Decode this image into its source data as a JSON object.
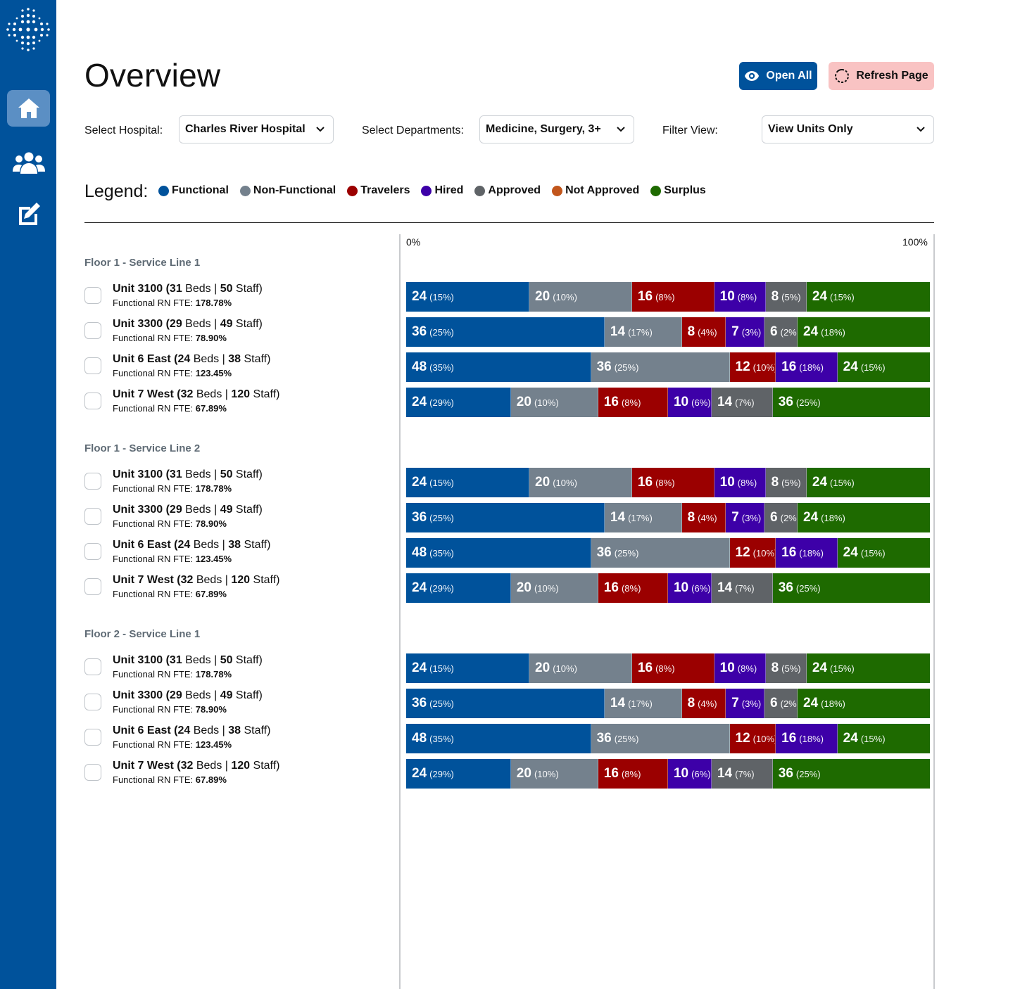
{
  "page": {
    "title": "Overview"
  },
  "actions": {
    "open_all": "Open All",
    "refresh": "Refresh Page"
  },
  "filters": {
    "hospital_label": "Select Hospital:",
    "hospital_value": "Charles River Hospital",
    "departments_label": "Select Departments:",
    "departments_value": "Medicine, Surgery, 3+",
    "view_label": "Filter View:",
    "view_value": "View Units Only"
  },
  "legend": {
    "title": "Legend:",
    "items": [
      {
        "key": "functional",
        "label": "Functional",
        "color": "#00529b"
      },
      {
        "key": "non-functional",
        "label": "Non-Functional",
        "color": "#74818d"
      },
      {
        "key": "travelers",
        "label": "Travelers",
        "color": "#9b0000"
      },
      {
        "key": "hired",
        "label": "Hired",
        "color": "#3d00a8"
      },
      {
        "key": "approved",
        "label": "Approved",
        "color": "#5f6367"
      },
      {
        "key": "not-approved",
        "label": "Not Approved",
        "color": "#c2561c"
      },
      {
        "key": "surplus",
        "label": "Surplus",
        "color": "#1e6a00"
      }
    ]
  },
  "axis": {
    "min_label": "0%",
    "max_label": "100%"
  },
  "groups": [
    {
      "title": "Floor 1 - Service Line 1",
      "units": [
        {
          "name": "Unit 3100",
          "beds": "31",
          "staff": "50",
          "fte_label": "Functional RN FTE:",
          "fte": "178.78%",
          "segments": [
            {
              "type": "functional",
              "value": "24",
              "pct": "15%"
            },
            {
              "type": "non-functional",
              "value": "20",
              "pct": "10%"
            },
            {
              "type": "travelers",
              "value": "16",
              "pct": "8%"
            },
            {
              "type": "hired",
              "value": "10",
              "pct": "8%"
            },
            {
              "type": "approved",
              "value": "8",
              "pct": "5%"
            },
            {
              "type": "surplus",
              "value": "24",
              "pct": "15%"
            }
          ]
        },
        {
          "name": "Unit 3300",
          "beds": "29",
          "staff": "49",
          "fte_label": "Functional RN FTE:",
          "fte": "78.90%",
          "segments": [
            {
              "type": "functional",
              "value": "36",
              "pct": "25%"
            },
            {
              "type": "non-functional",
              "value": "14",
              "pct": "17%"
            },
            {
              "type": "travelers",
              "value": "8",
              "pct": "4%"
            },
            {
              "type": "hired",
              "value": "7",
              "pct": "3%"
            },
            {
              "type": "approved",
              "value": "6",
              "pct": "2%"
            },
            {
              "type": "surplus",
              "value": "24",
              "pct": "18%"
            }
          ]
        },
        {
          "name": "Unit 6 East",
          "beds": "24",
          "staff": "38",
          "fte_label": "Functional RN FTE:",
          "fte": "123.45%",
          "segments": [
            {
              "type": "functional",
              "value": "48",
              "pct": "35%"
            },
            {
              "type": "non-functional",
              "value": "36",
              "pct": "25%"
            },
            {
              "type": "travelers",
              "value": "12",
              "pct": "10%"
            },
            {
              "type": "hired",
              "value": "16",
              "pct": "18%"
            },
            {
              "type": "surplus",
              "value": "24",
              "pct": "15%"
            }
          ]
        },
        {
          "name": "Unit 7 West",
          "beds": "32",
          "staff": "120",
          "fte_label": "Functional RN FTE:",
          "fte": "67.89%",
          "segments": [
            {
              "type": "functional",
              "value": "24",
              "pct": "29%"
            },
            {
              "type": "non-functional",
              "value": "20",
              "pct": "10%"
            },
            {
              "type": "travelers",
              "value": "16",
              "pct": "8%"
            },
            {
              "type": "hired",
              "value": "10",
              "pct": "6%"
            },
            {
              "type": "approved",
              "value": "14",
              "pct": "7%"
            },
            {
              "type": "surplus",
              "value": "36",
              "pct": "25%"
            }
          ]
        }
      ]
    },
    {
      "title": "Floor 1 - Service Line 2",
      "units": [
        {
          "name": "Unit 3100",
          "beds": "31",
          "staff": "50",
          "fte_label": "Functional RN FTE:",
          "fte": "178.78%",
          "segments": [
            {
              "type": "functional",
              "value": "24",
              "pct": "15%"
            },
            {
              "type": "non-functional",
              "value": "20",
              "pct": "10%"
            },
            {
              "type": "travelers",
              "value": "16",
              "pct": "8%"
            },
            {
              "type": "hired",
              "value": "10",
              "pct": "8%"
            },
            {
              "type": "approved",
              "value": "8",
              "pct": "5%"
            },
            {
              "type": "surplus",
              "value": "24",
              "pct": "15%"
            }
          ]
        },
        {
          "name": "Unit 3300",
          "beds": "29",
          "staff": "49",
          "fte_label": "Functional RN FTE:",
          "fte": "78.90%",
          "segments": [
            {
              "type": "functional",
              "value": "36",
              "pct": "25%"
            },
            {
              "type": "non-functional",
              "value": "14",
              "pct": "17%"
            },
            {
              "type": "travelers",
              "value": "8",
              "pct": "4%"
            },
            {
              "type": "hired",
              "value": "7",
              "pct": "3%"
            },
            {
              "type": "approved",
              "value": "6",
              "pct": "2%"
            },
            {
              "type": "surplus",
              "value": "24",
              "pct": "18%"
            }
          ]
        },
        {
          "name": "Unit 6 East",
          "beds": "24",
          "staff": "38",
          "fte_label": "Functional RN FTE:",
          "fte": "123.45%",
          "segments": [
            {
              "type": "functional",
              "value": "48",
              "pct": "35%"
            },
            {
              "type": "non-functional",
              "value": "36",
              "pct": "25%"
            },
            {
              "type": "travelers",
              "value": "12",
              "pct": "10%"
            },
            {
              "type": "hired",
              "value": "16",
              "pct": "18%"
            },
            {
              "type": "surplus",
              "value": "24",
              "pct": "15%"
            }
          ]
        },
        {
          "name": "Unit 7 West",
          "beds": "32",
          "staff": "120",
          "fte_label": "Functional RN FTE:",
          "fte": "67.89%",
          "segments": [
            {
              "type": "functional",
              "value": "24",
              "pct": "29%"
            },
            {
              "type": "non-functional",
              "value": "20",
              "pct": "10%"
            },
            {
              "type": "travelers",
              "value": "16",
              "pct": "8%"
            },
            {
              "type": "hired",
              "value": "10",
              "pct": "6%"
            },
            {
              "type": "approved",
              "value": "14",
              "pct": "7%"
            },
            {
              "type": "surplus",
              "value": "36",
              "pct": "25%"
            }
          ]
        }
      ]
    },
    {
      "title": "Floor 2 - Service Line 1",
      "units": [
        {
          "name": "Unit 3100",
          "beds": "31",
          "staff": "50",
          "fte_label": "Functional RN FTE:",
          "fte": "178.78%",
          "segments": [
            {
              "type": "functional",
              "value": "24",
              "pct": "15%"
            },
            {
              "type": "non-functional",
              "value": "20",
              "pct": "10%"
            },
            {
              "type": "travelers",
              "value": "16",
              "pct": "8%"
            },
            {
              "type": "hired",
              "value": "10",
              "pct": "8%"
            },
            {
              "type": "approved",
              "value": "8",
              "pct": "5%"
            },
            {
              "type": "surplus",
              "value": "24",
              "pct": "15%"
            }
          ]
        },
        {
          "name": "Unit 3300",
          "beds": "29",
          "staff": "49",
          "fte_label": "Functional RN FTE:",
          "fte": "78.90%",
          "segments": [
            {
              "type": "functional",
              "value": "36",
              "pct": "25%"
            },
            {
              "type": "non-functional",
              "value": "14",
              "pct": "17%"
            },
            {
              "type": "travelers",
              "value": "8",
              "pct": "4%"
            },
            {
              "type": "hired",
              "value": "7",
              "pct": "3%"
            },
            {
              "type": "approved",
              "value": "6",
              "pct": "2%"
            },
            {
              "type": "surplus",
              "value": "24",
              "pct": "18%"
            }
          ]
        },
        {
          "name": "Unit 6 East",
          "beds": "24",
          "staff": "38",
          "fte_label": "Functional RN FTE:",
          "fte": "123.45%",
          "segments": [
            {
              "type": "functional",
              "value": "48",
              "pct": "35%"
            },
            {
              "type": "non-functional",
              "value": "36",
              "pct": "25%"
            },
            {
              "type": "travelers",
              "value": "12",
              "pct": "10%"
            },
            {
              "type": "hired",
              "value": "16",
              "pct": "18%"
            },
            {
              "type": "surplus",
              "value": "24",
              "pct": "15%"
            }
          ]
        },
        {
          "name": "Unit 7 West",
          "beds": "32",
          "staff": "120",
          "fte_label": "Functional RN FTE:",
          "fte": "67.89%",
          "segments": [
            {
              "type": "functional",
              "value": "24",
              "pct": "29%"
            },
            {
              "type": "non-functional",
              "value": "20",
              "pct": "10%"
            },
            {
              "type": "travelers",
              "value": "16",
              "pct": "8%"
            },
            {
              "type": "hired",
              "value": "10",
              "pct": "6%"
            },
            {
              "type": "approved",
              "value": "14",
              "pct": "7%"
            },
            {
              "type": "surplus",
              "value": "36",
              "pct": "25%"
            }
          ]
        }
      ]
    }
  ]
}
